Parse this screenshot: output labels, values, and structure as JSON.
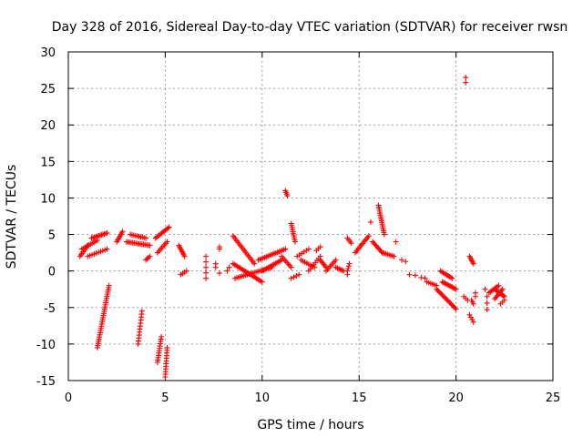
{
  "chart_data": {
    "type": "scatter",
    "title": "Day 328 of 2016, Sidereal Day-to-day VTEC variation (SDTVAR) for receiver rwsn",
    "xlabel": "GPS time / hours",
    "ylabel": "SDTVAR / TECUs",
    "xlim": [
      0,
      25
    ],
    "ylim": [
      -15,
      30
    ],
    "xticks": [
      "0",
      "5",
      "10",
      "15",
      "20",
      "25"
    ],
    "yticks": [
      "-15",
      "-10",
      "-5",
      "0",
      "5",
      "10",
      "15",
      "20",
      "25",
      "30"
    ],
    "marker": "plus",
    "color": "#ff0000",
    "grid": true,
    "segments": [
      {
        "x0": 0.6,
        "y0": 2.0,
        "x1": 1.0,
        "y1": 3.5,
        "n": 8
      },
      {
        "x0": 0.7,
        "y0": 3.0,
        "x1": 1.5,
        "y1": 4.2,
        "n": 10
      },
      {
        "x0": 1.2,
        "y0": 4.5,
        "x1": 2.0,
        "y1": 5.2,
        "n": 12
      },
      {
        "x0": 1.0,
        "y0": 2.0,
        "x1": 2.0,
        "y1": 3.0,
        "n": 10
      },
      {
        "x0": 1.5,
        "y0": -10.5,
        "x1": 2.1,
        "y1": -2.0,
        "n": 30
      },
      {
        "x0": 2.5,
        "y0": 4.0,
        "x1": 2.8,
        "y1": 5.4,
        "n": 8
      },
      {
        "x0": 3.0,
        "y0": 4.0,
        "x1": 4.2,
        "y1": 3.5,
        "n": 16
      },
      {
        "x0": 3.2,
        "y0": 5.0,
        "x1": 4.0,
        "y1": 4.5,
        "n": 10
      },
      {
        "x0": 3.6,
        "y0": -10.0,
        "x1": 3.8,
        "y1": -5.5,
        "n": 12
      },
      {
        "x0": 4.0,
        "y0": 1.5,
        "x1": 4.2,
        "y1": 2.0,
        "n": 4
      },
      {
        "x0": 4.6,
        "y0": -12.5,
        "x1": 4.8,
        "y1": -9.0,
        "n": 12
      },
      {
        "x0": 5.0,
        "y0": -14.5,
        "x1": 5.1,
        "y1": -10.5,
        "n": 12
      },
      {
        "x0": 4.5,
        "y0": 4.5,
        "x1": 5.2,
        "y1": 6.0,
        "n": 12
      },
      {
        "x0": 4.6,
        "y0": 2.5,
        "x1": 5.1,
        "y1": 4.0,
        "n": 8
      },
      {
        "x0": 5.7,
        "y0": 3.5,
        "x1": 6.0,
        "y1": 2.0,
        "n": 8
      },
      {
        "x0": 5.8,
        "y0": -0.5,
        "x1": 6.1,
        "y1": 0.0,
        "n": 4
      },
      {
        "x0": 7.1,
        "y0": -1.0,
        "x1": 7.1,
        "y1": 2.0,
        "n": 5
      },
      {
        "x0": 7.6,
        "y0": 0.5,
        "x1": 7.6,
        "y1": 1.0,
        "n": 2
      },
      {
        "x0": 7.8,
        "y0": 3.0,
        "x1": 7.8,
        "y1": 3.3,
        "n": 2
      },
      {
        "x0": 7.8,
        "y0": -0.3,
        "x1": 7.8,
        "y1": -0.3,
        "n": 1
      },
      {
        "x0": 8.2,
        "y0": 0.0,
        "x1": 8.3,
        "y1": 0.5,
        "n": 2
      },
      {
        "x0": 8.5,
        "y0": 4.8,
        "x1": 9.6,
        "y1": 1.0,
        "n": 18
      },
      {
        "x0": 8.5,
        "y0": 1.0,
        "x1": 10.0,
        "y1": -1.5,
        "n": 22
      },
      {
        "x0": 8.6,
        "y0": -1.0,
        "x1": 10.5,
        "y1": 0.5,
        "n": 22
      },
      {
        "x0": 9.8,
        "y0": 1.5,
        "x1": 11.2,
        "y1": 3.0,
        "n": 18
      },
      {
        "x0": 10.0,
        "y0": 0.0,
        "x1": 11.0,
        "y1": 1.5,
        "n": 14
      },
      {
        "x0": 11.0,
        "y0": 2.0,
        "x1": 11.5,
        "y1": 0.5,
        "n": 8
      },
      {
        "x0": 11.2,
        "y0": 11.0,
        "x1": 11.3,
        "y1": 10.3,
        "n": 4
      },
      {
        "x0": 11.5,
        "y0": 6.5,
        "x1": 11.7,
        "y1": 4.0,
        "n": 10
      },
      {
        "x0": 11.5,
        "y0": -1.0,
        "x1": 11.9,
        "y1": -0.5,
        "n": 4
      },
      {
        "x0": 11.8,
        "y0": 2.0,
        "x1": 12.4,
        "y1": 3.0,
        "n": 6
      },
      {
        "x0": 12.8,
        "y0": 2.8,
        "x1": 13.0,
        "y1": 3.3,
        "n": 3
      },
      {
        "x0": 12.0,
        "y0": 1.5,
        "x1": 12.7,
        "y1": 0.5,
        "n": 8
      },
      {
        "x0": 12.4,
        "y0": 0.0,
        "x1": 13.0,
        "y1": 2.0,
        "n": 8
      },
      {
        "x0": 13.0,
        "y0": 1.5,
        "x1": 13.3,
        "y1": 0.5,
        "n": 6
      },
      {
        "x0": 13.3,
        "y0": 0.0,
        "x1": 13.8,
        "y1": 1.5,
        "n": 8
      },
      {
        "x0": 13.8,
        "y0": 0.5,
        "x1": 14.2,
        "y1": 0.0,
        "n": 6
      },
      {
        "x0": 14.4,
        "y0": 4.5,
        "x1": 14.6,
        "y1": 3.8,
        "n": 4
      },
      {
        "x0": 14.4,
        "y0": 0.0,
        "x1": 14.5,
        "y1": 1.0,
        "n": 4
      },
      {
        "x0": 14.4,
        "y0": -0.5,
        "x1": 14.4,
        "y1": -0.5,
        "n": 1
      },
      {
        "x0": 14.8,
        "y0": 2.5,
        "x1": 15.5,
        "y1": 4.8,
        "n": 12
      },
      {
        "x0": 15.6,
        "y0": 6.7,
        "x1": 15.6,
        "y1": 6.7,
        "n": 1
      },
      {
        "x0": 15.7,
        "y0": 4.0,
        "x1": 16.2,
        "y1": 2.5,
        "n": 10
      },
      {
        "x0": 16.0,
        "y0": 9.0,
        "x1": 16.3,
        "y1": 5.0,
        "n": 16
      },
      {
        "x0": 16.2,
        "y0": 2.5,
        "x1": 16.8,
        "y1": 2.0,
        "n": 8
      },
      {
        "x0": 16.9,
        "y0": 4.0,
        "x1": 16.9,
        "y1": 4.0,
        "n": 1
      },
      {
        "x0": 17.2,
        "y0": 1.5,
        "x1": 17.4,
        "y1": 1.3,
        "n": 2
      },
      {
        "x0": 17.6,
        "y0": -0.5,
        "x1": 17.9,
        "y1": -0.6,
        "n": 2
      },
      {
        "x0": 18.2,
        "y0": -0.9,
        "x1": 18.4,
        "y1": -1.0,
        "n": 2
      },
      {
        "x0": 18.5,
        "y0": -1.5,
        "x1": 19.0,
        "y1": -2.0,
        "n": 6
      },
      {
        "x0": 19.0,
        "y0": -2.5,
        "x1": 20.0,
        "y1": -5.2,
        "n": 18
      },
      {
        "x0": 19.2,
        "y0": 0.0,
        "x1": 19.8,
        "y1": -1.0,
        "n": 10
      },
      {
        "x0": 19.3,
        "y0": -1.5,
        "x1": 20.0,
        "y1": -2.5,
        "n": 12
      },
      {
        "x0": 20.5,
        "y0": 26.5,
        "x1": 20.5,
        "y1": 25.8,
        "n": 2
      },
      {
        "x0": 20.4,
        "y0": -3.5,
        "x1": 20.6,
        "y1": -4.0,
        "n": 3
      },
      {
        "x0": 20.7,
        "y0": 2.0,
        "x1": 20.9,
        "y1": 1.0,
        "n": 6
      },
      {
        "x0": 20.7,
        "y0": -6.0,
        "x1": 20.9,
        "y1": -7.0,
        "n": 4
      },
      {
        "x0": 20.8,
        "y0": -4.0,
        "x1": 20.9,
        "y1": -4.5,
        "n": 3
      },
      {
        "x0": 21.0,
        "y0": -3.0,
        "x1": 21.0,
        "y1": -3.5,
        "n": 2
      },
      {
        "x0": 21.5,
        "y0": -2.5,
        "x1": 21.5,
        "y1": -2.5,
        "n": 1
      },
      {
        "x0": 21.6,
        "y0": -3.5,
        "x1": 21.6,
        "y1": -5.3,
        "n": 3
      },
      {
        "x0": 21.7,
        "y0": -3.0,
        "x1": 22.2,
        "y1": -2.0,
        "n": 8
      },
      {
        "x0": 22.0,
        "y0": -2.5,
        "x1": 22.5,
        "y1": -3.5,
        "n": 10
      },
      {
        "x0": 22.0,
        "y0": -3.8,
        "x1": 22.4,
        "y1": -2.5,
        "n": 8
      },
      {
        "x0": 22.3,
        "y0": -4.5,
        "x1": 22.5,
        "y1": -4.0,
        "n": 3
      }
    ]
  }
}
